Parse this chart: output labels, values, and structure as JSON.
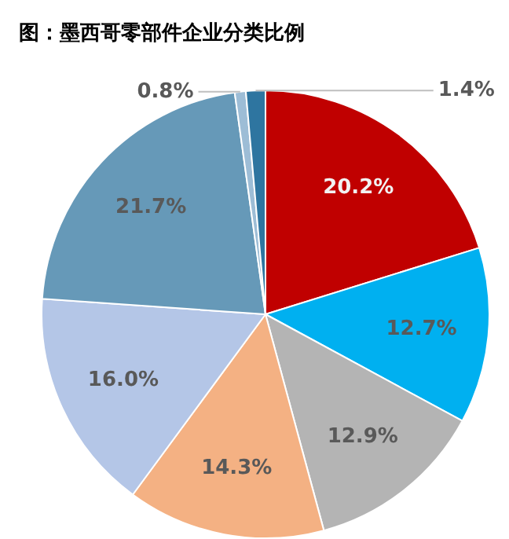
{
  "chart_data": {
    "type": "pie",
    "title": "图：墨西哥零部件企业分类比例",
    "categories": [
      null,
      null,
      null,
      null,
      null,
      null,
      null,
      null
    ],
    "values": [
      20.2,
      12.7,
      12.9,
      14.3,
      16.0,
      21.7,
      0.8,
      1.4
    ],
    "colors": [
      "#c00000",
      "#00b0f0",
      "#b4b4b4",
      "#f4b183",
      "#b4c6e7",
      "#6699b8",
      "#9dbdd6",
      "#2e75a0"
    ],
    "value_labels": [
      "20.2%",
      "12.7%",
      "12.9%",
      "14.3%",
      "16.0%",
      "21.7%",
      "0.8%",
      "1.4%"
    ],
    "legend": false
  }
}
